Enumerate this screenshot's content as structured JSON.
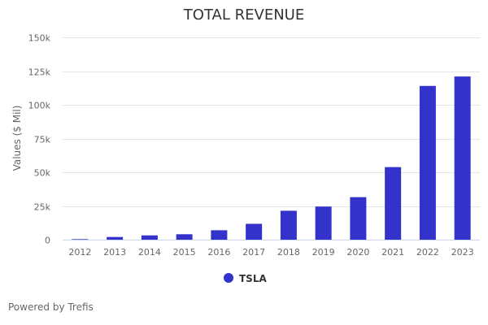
{
  "chart_data": {
    "type": "bar",
    "title": "TOTAL REVENUE",
    "xlabel": "",
    "ylabel": "Values ($ Mil)",
    "ylim": [
      0,
      150000
    ],
    "yticks": [
      0,
      25000,
      50000,
      75000,
      100000,
      125000,
      150000
    ],
    "ytick_labels": [
      "0",
      "25k",
      "50k",
      "75k",
      "100k",
      "125k",
      "150k"
    ],
    "categories": [
      "2012",
      "2013",
      "2014",
      "2015",
      "2016",
      "2017",
      "2018",
      "2019",
      "2020",
      "2021",
      "2022",
      "2023"
    ],
    "series": [
      {
        "name": "TSLA",
        "color": "#3333cc",
        "values": [
          413,
          2013,
          3198,
          4046,
          7000,
          11759,
          21461,
          24578,
          31536,
          53823,
          114000,
          121000
        ]
      }
    ],
    "grid": true,
    "legend": "bottom-center"
  },
  "credit": "Powered by Trefis"
}
